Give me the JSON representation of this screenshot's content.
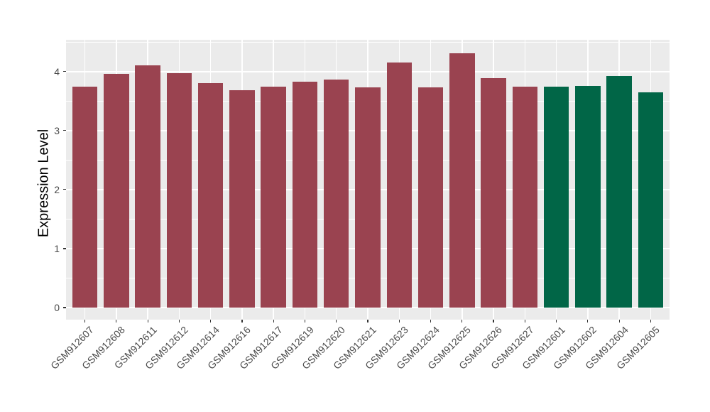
{
  "chart_data": {
    "type": "bar",
    "title": "",
    "xlabel": "",
    "ylabel": "Expression Level",
    "categories": [
      "GSM912607",
      "GSM912608",
      "GSM912611",
      "GSM912612",
      "GSM912614",
      "GSM912616",
      "GSM912617",
      "GSM912619",
      "GSM912620",
      "GSM912621",
      "GSM912623",
      "GSM912624",
      "GSM912625",
      "GSM912626",
      "GSM912627",
      "GSM912601",
      "GSM912602",
      "GSM912604",
      "GSM912605"
    ],
    "values": [
      3.74,
      3.96,
      4.1,
      3.97,
      3.81,
      3.68,
      3.74,
      3.83,
      3.86,
      3.73,
      4.15,
      3.73,
      4.31,
      3.89,
      3.74,
      3.74,
      3.75,
      3.92,
      3.65
    ],
    "bar_colors": [
      "#9A4350",
      "#9A4350",
      "#9A4350",
      "#9A4350",
      "#9A4350",
      "#9A4350",
      "#9A4350",
      "#9A4350",
      "#9A4350",
      "#9A4350",
      "#9A4350",
      "#9A4350",
      "#9A4350",
      "#9A4350",
      "#9A4350",
      "#016647",
      "#016647",
      "#016647",
      "#016647"
    ],
    "yticks": [
      0,
      1,
      2,
      3,
      4
    ],
    "yticks_minor": [
      0.5,
      1.5,
      2.5,
      3.5,
      4.5
    ],
    "ylim": [
      0,
      4.54
    ],
    "grid": true,
    "legend_position": "none",
    "colors": {
      "panel_background": "#EBEBEB",
      "gridline": "#FFFFFF",
      "axis_text": "#4A4A4A",
      "axis_title": "#000000",
      "tick_mark": "#333333",
      "bar_group_left": "#9A4350",
      "bar_group_right": "#016647"
    }
  }
}
